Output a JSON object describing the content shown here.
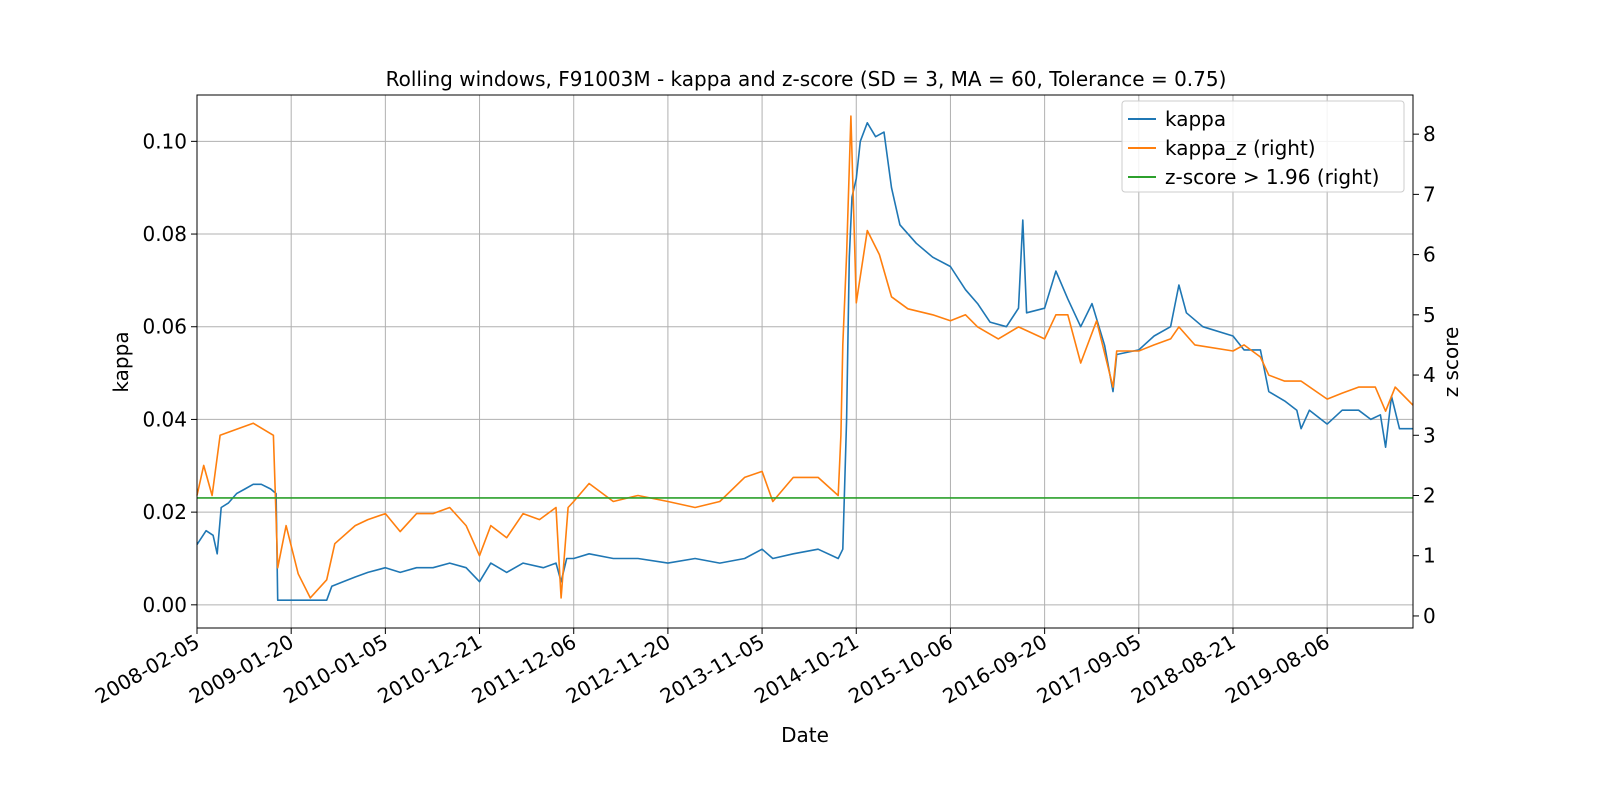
{
  "chart_data": {
    "type": "line",
    "title": "Rolling windows, F91003M - kappa and z-score (SD = 3, MA = 60, Tolerance  = 0.75)",
    "xlabel": "Date",
    "ylabel": "kappa",
    "ylabel_right": "z score",
    "x_ticks": [
      "2008-02-05",
      "2009-01-20",
      "2010-01-05",
      "2010-12-21",
      "2011-12-06",
      "2012-11-20",
      "2013-11-05",
      "2014-10-21",
      "2015-10-06",
      "2016-09-20",
      "2017-09-05",
      "2018-08-21",
      "2019-08-06"
    ],
    "x_range": [
      "2008-02-05",
      "2020-06-20"
    ],
    "y_ticks_left": [
      "0.00",
      "0.02",
      "0.04",
      "0.06",
      "0.08",
      "0.10"
    ],
    "y_ticks_right": [
      "0",
      "1",
      "2",
      "3",
      "4",
      "5",
      "6",
      "7",
      "8"
    ],
    "ylim_left": [
      -0.005,
      0.11
    ],
    "ylim_right": [
      -0.2,
      8.65
    ],
    "grid": true,
    "legend_position": "top-right",
    "series": [
      {
        "name": "kappa",
        "axis": "left",
        "color": "#1f77b4",
        "points": [
          [
            "2008-02-05",
            0.013
          ],
          [
            "2008-03-10",
            0.016
          ],
          [
            "2008-04-05",
            0.015
          ],
          [
            "2008-04-20",
            0.011
          ],
          [
            "2008-05-05",
            0.021
          ],
          [
            "2008-06-01",
            0.022
          ],
          [
            "2008-07-01",
            0.024
          ],
          [
            "2008-08-01",
            0.025
          ],
          [
            "2008-09-01",
            0.026
          ],
          [
            "2008-10-01",
            0.026
          ],
          [
            "2008-11-05",
            0.025
          ],
          [
            "2008-11-25",
            0.024
          ],
          [
            "2008-12-01",
            0.001
          ],
          [
            "2009-01-20",
            0.001
          ],
          [
            "2009-03-01",
            0.001
          ],
          [
            "2009-05-01",
            0.001
          ],
          [
            "2009-06-01",
            0.001
          ],
          [
            "2009-06-20",
            0.004
          ],
          [
            "2009-08-01",
            0.005
          ],
          [
            "2009-09-15",
            0.006
          ],
          [
            "2009-11-01",
            0.007
          ],
          [
            "2010-01-05",
            0.008
          ],
          [
            "2010-03-01",
            0.007
          ],
          [
            "2010-05-01",
            0.008
          ],
          [
            "2010-07-01",
            0.008
          ],
          [
            "2010-09-01",
            0.009
          ],
          [
            "2010-11-01",
            0.008
          ],
          [
            "2010-12-21",
            0.005
          ],
          [
            "2011-02-01",
            0.009
          ],
          [
            "2011-04-01",
            0.007
          ],
          [
            "2011-06-01",
            0.009
          ],
          [
            "2011-08-15",
            0.008
          ],
          [
            "2011-10-01",
            0.009
          ],
          [
            "2011-10-20",
            0.005
          ],
          [
            "2011-11-10",
            0.01
          ],
          [
            "2011-12-06",
            0.01
          ],
          [
            "2012-02-01",
            0.011
          ],
          [
            "2012-05-01",
            0.01
          ],
          [
            "2012-08-01",
            0.01
          ],
          [
            "2012-11-20",
            0.009
          ],
          [
            "2013-03-01",
            0.01
          ],
          [
            "2013-06-01",
            0.009
          ],
          [
            "2013-09-01",
            0.01
          ],
          [
            "2013-11-05",
            0.012
          ],
          [
            "2013-12-15",
            0.01
          ],
          [
            "2014-03-01",
            0.011
          ],
          [
            "2014-06-01",
            0.012
          ],
          [
            "2014-08-15",
            0.01
          ],
          [
            "2014-09-01",
            0.012
          ],
          [
            "2014-09-15",
            0.04
          ],
          [
            "2014-09-25",
            0.075
          ],
          [
            "2014-10-05",
            0.088
          ],
          [
            "2014-10-21",
            0.092
          ],
          [
            "2014-11-05",
            0.1
          ],
          [
            "2014-12-01",
            0.104
          ],
          [
            "2015-01-01",
            0.101
          ],
          [
            "2015-02-01",
            0.102
          ],
          [
            "2015-03-01",
            0.09
          ],
          [
            "2015-04-01",
            0.082
          ],
          [
            "2015-06-01",
            0.078
          ],
          [
            "2015-08-01",
            0.075
          ],
          [
            "2015-10-06",
            0.073
          ],
          [
            "2015-12-01",
            0.068
          ],
          [
            "2016-01-15",
            0.065
          ],
          [
            "2016-03-01",
            0.061
          ],
          [
            "2016-05-01",
            0.06
          ],
          [
            "2016-06-15",
            0.064
          ],
          [
            "2016-07-01",
            0.083
          ],
          [
            "2016-07-15",
            0.063
          ],
          [
            "2016-09-20",
            0.064
          ],
          [
            "2016-11-01",
            0.072
          ],
          [
            "2016-12-15",
            0.066
          ],
          [
            "2017-02-01",
            0.06
          ],
          [
            "2017-03-15",
            0.065
          ],
          [
            "2017-05-01",
            0.056
          ],
          [
            "2017-06-01",
            0.046
          ],
          [
            "2017-06-15",
            0.054
          ],
          [
            "2017-09-05",
            0.055
          ],
          [
            "2017-11-01",
            0.058
          ],
          [
            "2018-01-01",
            0.06
          ],
          [
            "2018-02-01",
            0.069
          ],
          [
            "2018-03-01",
            0.063
          ],
          [
            "2018-05-01",
            0.06
          ],
          [
            "2018-08-21",
            0.058
          ],
          [
            "2018-10-01",
            0.055
          ],
          [
            "2018-12-01",
            0.055
          ],
          [
            "2019-01-01",
            0.046
          ],
          [
            "2019-03-01",
            0.044
          ],
          [
            "2019-04-15",
            0.042
          ],
          [
            "2019-05-01",
            0.038
          ],
          [
            "2019-06-01",
            0.042
          ],
          [
            "2019-08-06",
            0.039
          ],
          [
            "2019-10-01",
            0.042
          ],
          [
            "2019-12-01",
            0.042
          ],
          [
            "2020-01-15",
            0.04
          ],
          [
            "2020-02-20",
            0.041
          ],
          [
            "2020-03-10",
            0.034
          ],
          [
            "2020-04-01",
            0.045
          ],
          [
            "2020-05-01",
            0.038
          ],
          [
            "2020-06-20",
            0.038
          ]
        ]
      },
      {
        "name": "kappa_z (right)",
        "axis": "right",
        "color": "#ff7f0e",
        "points": [
          [
            "2008-02-05",
            2.0
          ],
          [
            "2008-03-01",
            2.5
          ],
          [
            "2008-04-01",
            2.0
          ],
          [
            "2008-05-01",
            3.0
          ],
          [
            "2008-07-01",
            3.1
          ],
          [
            "2008-09-01",
            3.2
          ],
          [
            "2008-11-15",
            3.0
          ],
          [
            "2008-12-01",
            0.8
          ],
          [
            "2009-01-01",
            1.5
          ],
          [
            "2009-02-15",
            0.7
          ],
          [
            "2009-04-01",
            0.3
          ],
          [
            "2009-06-01",
            0.6
          ],
          [
            "2009-07-01",
            1.2
          ],
          [
            "2009-09-15",
            1.5
          ],
          [
            "2009-11-01",
            1.6
          ],
          [
            "2010-01-05",
            1.7
          ],
          [
            "2010-03-01",
            1.4
          ],
          [
            "2010-05-01",
            1.7
          ],
          [
            "2010-07-01",
            1.7
          ],
          [
            "2010-09-01",
            1.8
          ],
          [
            "2010-11-01",
            1.5
          ],
          [
            "2010-12-21",
            1.0
          ],
          [
            "2011-02-01",
            1.5
          ],
          [
            "2011-04-01",
            1.3
          ],
          [
            "2011-06-01",
            1.7
          ],
          [
            "2011-08-01",
            1.6
          ],
          [
            "2011-10-01",
            1.8
          ],
          [
            "2011-10-20",
            0.3
          ],
          [
            "2011-11-15",
            1.8
          ],
          [
            "2011-12-06",
            1.9
          ],
          [
            "2012-02-01",
            2.2
          ],
          [
            "2012-05-01",
            1.9
          ],
          [
            "2012-08-01",
            2.0
          ],
          [
            "2012-11-20",
            1.9
          ],
          [
            "2013-03-01",
            1.8
          ],
          [
            "2013-06-01",
            1.9
          ],
          [
            "2013-09-01",
            2.3
          ],
          [
            "2013-11-05",
            2.4
          ],
          [
            "2013-12-15",
            1.9
          ],
          [
            "2014-03-01",
            2.3
          ],
          [
            "2014-06-01",
            2.3
          ],
          [
            "2014-08-15",
            2.0
          ],
          [
            "2014-08-25",
            3.0
          ],
          [
            "2014-09-01",
            4.5
          ],
          [
            "2014-09-15",
            6.0
          ],
          [
            "2014-10-01",
            8.3
          ],
          [
            "2014-10-21",
            5.2
          ],
          [
            "2014-12-01",
            6.4
          ],
          [
            "2015-01-15",
            6.0
          ],
          [
            "2015-03-01",
            5.3
          ],
          [
            "2015-05-01",
            5.1
          ],
          [
            "2015-08-01",
            5.0
          ],
          [
            "2015-10-06",
            4.9
          ],
          [
            "2015-12-01",
            5.0
          ],
          [
            "2016-01-15",
            4.8
          ],
          [
            "2016-04-01",
            4.6
          ],
          [
            "2016-06-15",
            4.8
          ],
          [
            "2016-09-20",
            4.6
          ],
          [
            "2016-11-01",
            5.0
          ],
          [
            "2016-12-15",
            5.0
          ],
          [
            "2017-02-01",
            4.2
          ],
          [
            "2017-04-01",
            4.9
          ],
          [
            "2017-06-01",
            3.8
          ],
          [
            "2017-06-15",
            4.4
          ],
          [
            "2017-09-05",
            4.4
          ],
          [
            "2017-11-01",
            4.5
          ],
          [
            "2018-01-01",
            4.6
          ],
          [
            "2018-02-01",
            4.8
          ],
          [
            "2018-04-01",
            4.5
          ],
          [
            "2018-08-21",
            4.4
          ],
          [
            "2018-10-01",
            4.5
          ],
          [
            "2018-12-01",
            4.3
          ],
          [
            "2019-01-01",
            4.0
          ],
          [
            "2019-03-01",
            3.9
          ],
          [
            "2019-05-01",
            3.9
          ],
          [
            "2019-08-06",
            3.6
          ],
          [
            "2019-10-01",
            3.7
          ],
          [
            "2019-12-01",
            3.8
          ],
          [
            "2020-02-01",
            3.8
          ],
          [
            "2020-03-10",
            3.4
          ],
          [
            "2020-04-15",
            3.8
          ],
          [
            "2020-06-20",
            3.5
          ]
        ]
      },
      {
        "name": "z-score > 1.96 (right)",
        "axis": "right",
        "color": "#2ca02c",
        "points": [
          [
            "2008-02-05",
            1.96
          ],
          [
            "2020-06-20",
            1.96
          ]
        ]
      }
    ]
  }
}
